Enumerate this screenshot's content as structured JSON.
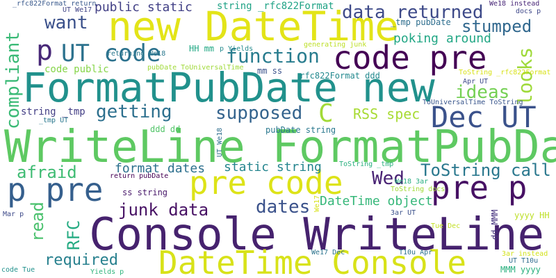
{
  "background": "#ffffff",
  "words": [
    {
      "text": "Console WriteLine",
      "color": "#46226e"
    },
    {
      "text": "WriteLine FormatPubDate",
      "color": "#5ec962"
    },
    {
      "text": "FormatPubDate new",
      "color": "#21918c"
    },
    {
      "text": "new DateTime",
      "color": "#e3e418"
    },
    {
      "text": "DateTime Console",
      "color": "#d8e219"
    },
    {
      "text": "code pre",
      "color": "#440154"
    },
    {
      "text": "pre code",
      "color": "#dde318"
    },
    {
      "text": "p pre",
      "color": "#355f8d"
    },
    {
      "text": "pre p",
      "color": "#471164"
    },
    {
      "text": "UT code",
      "color": "#2c728e"
    },
    {
      "text": "Dec UT",
      "color": "#3b528b"
    },
    {
      "text": "p",
      "color": "#482878"
    },
    {
      "text": "data returned",
      "color": "#3e4a89"
    },
    {
      "text": "stumped",
      "color": "#31688e"
    },
    {
      "text": "want",
      "color": "#3b518b"
    },
    {
      "text": "function",
      "color": "#287c8e"
    },
    {
      "text": "getting",
      "color": "#2d708e"
    },
    {
      "text": "supposed",
      "color": "#33638d"
    },
    {
      "text": "ideas",
      "color": "#75d054"
    },
    {
      "text": "looks",
      "color": "#9fda3a"
    },
    {
      "text": "compliant",
      "color": "#3aba76"
    },
    {
      "text": "C",
      "color": "#a2da37"
    },
    {
      "text": "RSS spec",
      "color": "#a8db34"
    },
    {
      "text": "afraid",
      "color": "#3fbc73"
    },
    {
      "text": "format dates",
      "color": "#2d708e"
    },
    {
      "text": "static string",
      "color": "#25858e"
    },
    {
      "text": "Wed",
      "color": "#482173"
    },
    {
      "text": "ToString call",
      "color": "#2a788e"
    },
    {
      "text": "junk data",
      "color": "#471164"
    },
    {
      "text": "dates",
      "color": "#3b528b"
    },
    {
      "text": "DateTime object",
      "color": "#35b779"
    },
    {
      "text": "read",
      "color": "#4ac16d"
    },
    {
      "text": "RFC",
      "color": "#25ab82"
    },
    {
      "text": "required",
      "color": "#27808e"
    },
    {
      "text": "public static",
      "color": "#424086"
    },
    {
      "text": "string _rfc822Format",
      "color": "#20a386"
    },
    {
      "text": "poking around",
      "color": "#22a785"
    },
    {
      "text": "code public",
      "color": "#86d549"
    },
    {
      "text": "string _tmp",
      "color": "#433e85"
    },
    {
      "text": "pubDate string",
      "color": "#2a788e"
    },
    {
      "text": "_rfc822Format ddd",
      "color": "#23898e"
    },
    {
      "text": "HH mm",
      "color": "#22a884"
    },
    {
      "text": "mm ss",
      "color": "#3b528b"
    },
    {
      "text": "_tmp pubDate",
      "color": "#2e6e8e"
    },
    {
      "text": "ss string",
      "color": "#48186a"
    },
    {
      "text": "yyyy HH",
      "color": "#bddf26"
    },
    {
      "text": "MMM yyyy",
      "color": "#2ab07f"
    },
    {
      "text": "dd MMM",
      "color": "#46337f"
    },
    {
      "text": "ddd dd",
      "color": "#52c569"
    },
    {
      "text": "UT We17",
      "color": "#414487"
    },
    {
      "text": "We18 instead",
      "color": "#482677"
    },
    {
      "text": "docs p",
      "color": "#3f4889"
    },
    {
      "text": "returning We18",
      "color": "#2a788e"
    },
    {
      "text": "p Yields",
      "color": "#238a8d"
    },
    {
      "text": "generating junk",
      "color": "#bddf26"
    },
    {
      "text": "pubDate ToUniversalTime",
      "color": "#a0da39"
    },
    {
      "text": "ToString _rfc822Format",
      "color": "#d8e219"
    },
    {
      "text": "Apr UT",
      "color": "#3e4a89"
    },
    {
      "text": "ToUniversalTime ToString",
      "color": "#39568c"
    },
    {
      "text": "_tmp UT",
      "color": "#2a788e"
    },
    {
      "text": "_rfc822Format return",
      "color": "#38588c"
    },
    {
      "text": "UT We18",
      "color": "#2e6e8e"
    },
    {
      "text": "ToString _tmp",
      "color": "#2ab07f"
    },
    {
      "text": "return pubDate",
      "color": "#440154"
    },
    {
      "text": "We18 3ar",
      "color": "#27ad81"
    },
    {
      "text": "ToString docs",
      "color": "#a2da37"
    },
    {
      "text": "Mar p",
      "color": "#3e4a89"
    },
    {
      "text": "3ar UT",
      "color": "#3b518b"
    },
    {
      "text": "Tue Dec",
      "color": "#c2df23"
    },
    {
      "text": "We17 Dec",
      "color": "#2c738e"
    },
    {
      "text": "T10u Apr",
      "color": "#2d708e"
    },
    {
      "text": "3ar instead",
      "color": "#d2e21b"
    },
    {
      "text": "UT T10u",
      "color": "#2f6c8e"
    },
    {
      "text": "code Tue",
      "color": "#21918c"
    },
    {
      "text": "Yields p",
      "color": "#2fb47c"
    },
    {
      "text": "We17",
      "color": "#d8e219"
    }
  ]
}
